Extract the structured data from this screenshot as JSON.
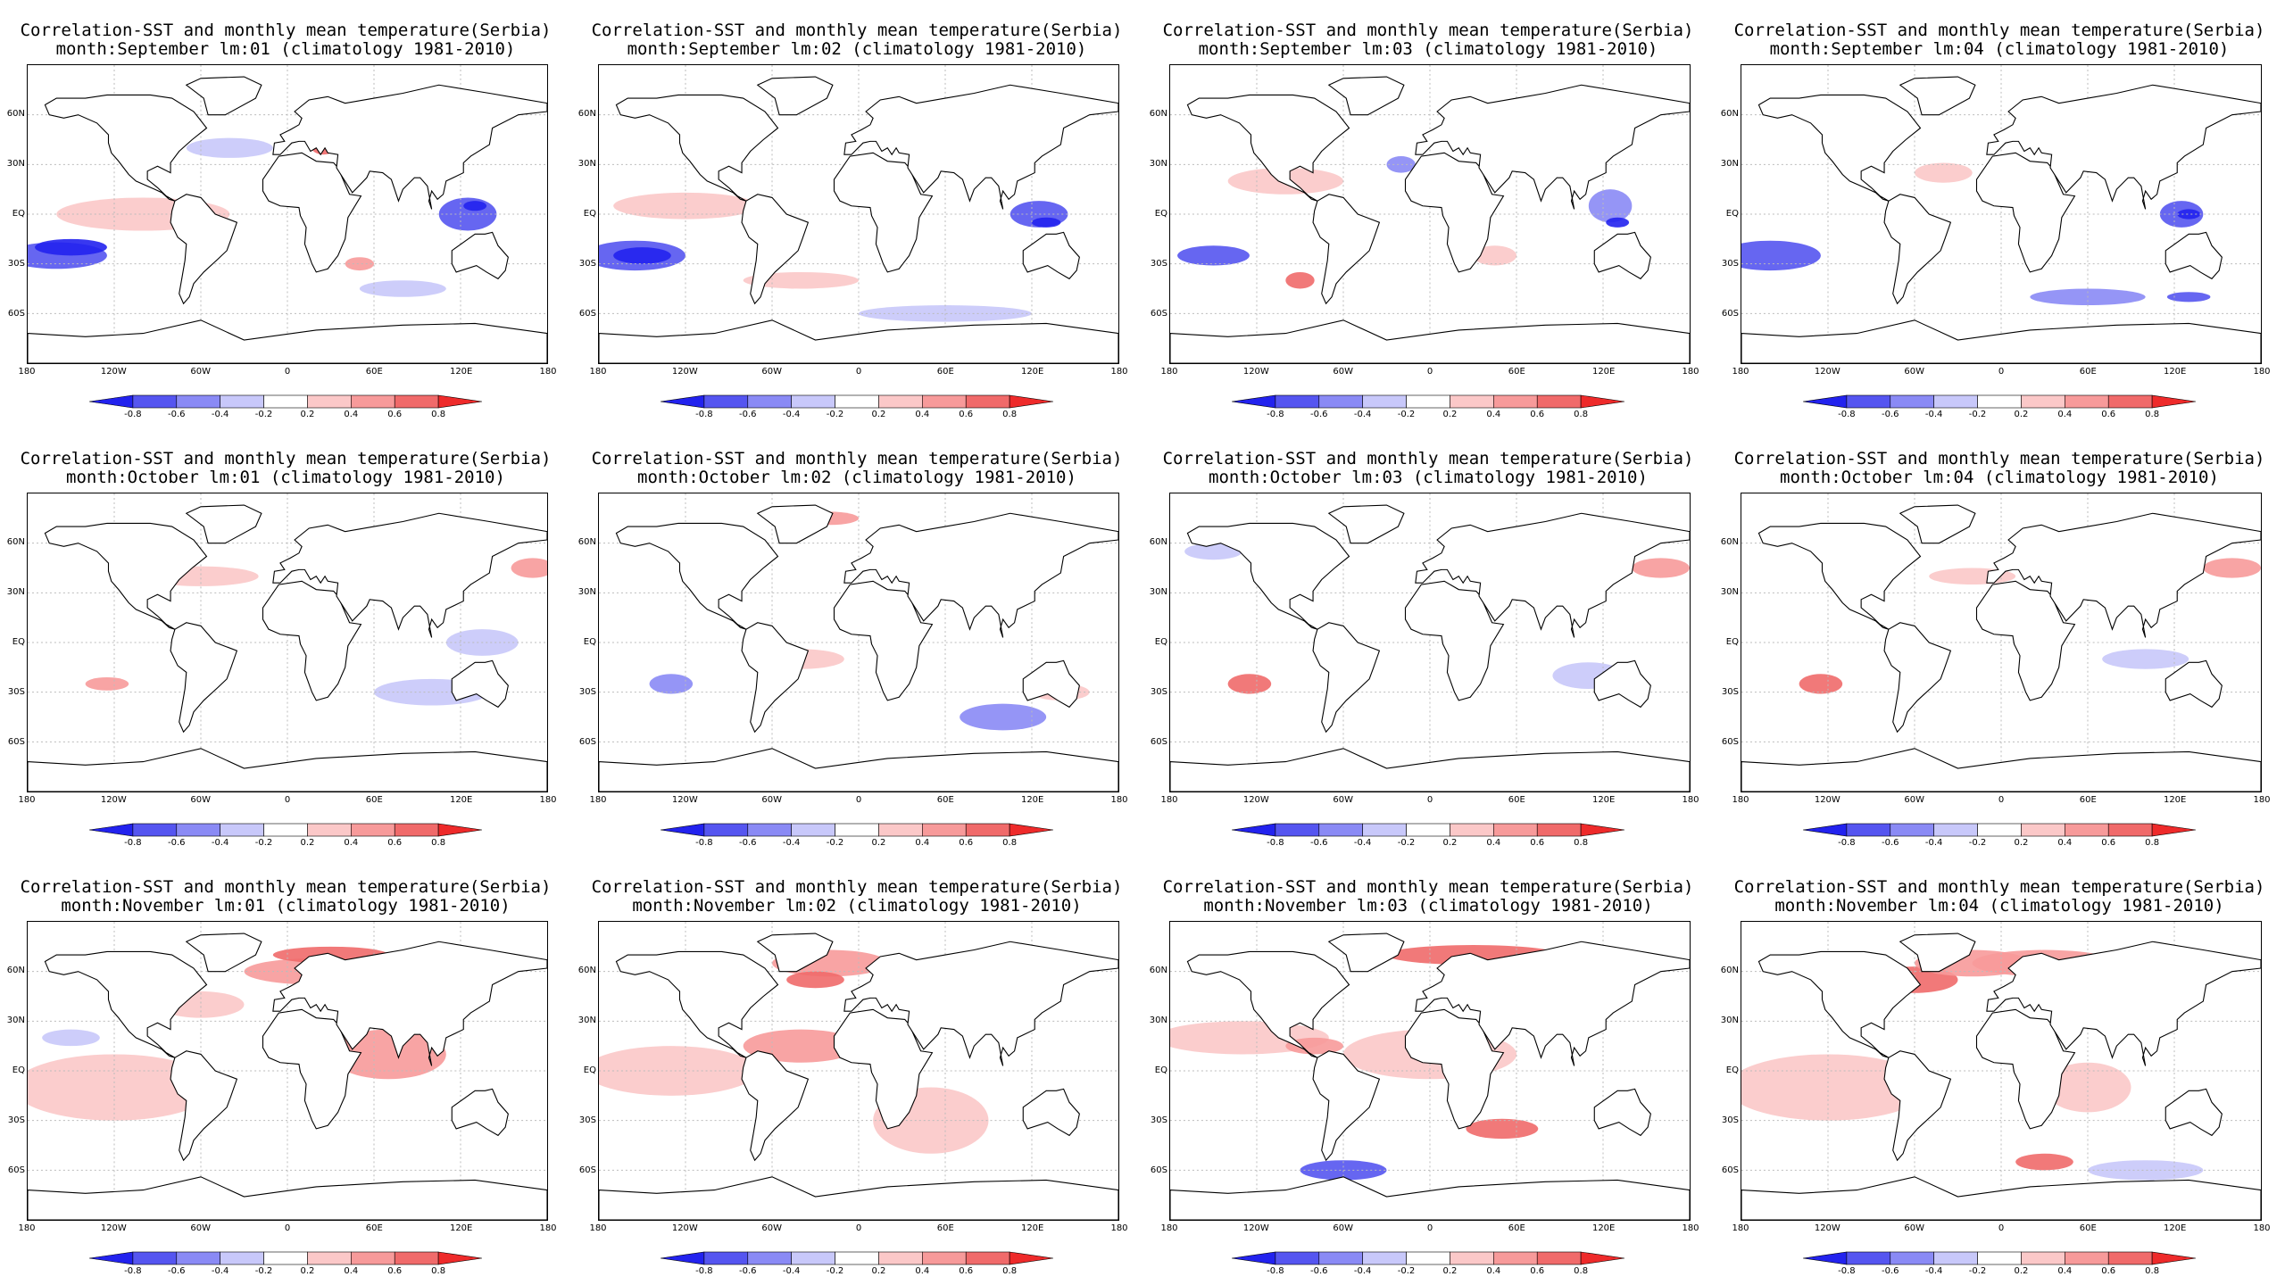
{
  "figure": {
    "title_line1": "Correlation-SST and monthly mean temperature(Serbia)",
    "colorbar_labels": [
      "-0.8",
      "-0.6",
      "-0.4",
      "-0.2",
      "0.2",
      "0.4",
      "0.6",
      "0.8"
    ],
    "colorbar_colors": [
      "#2222ee",
      "#5555f0",
      "#8a8af5",
      "#c8c8fa",
      "#ffffff",
      "#fbc8c8",
      "#f79a9a",
      "#f06a6a",
      "#ee2a2a"
    ],
    "lon_labels": [
      "180",
      "120W",
      "60W",
      "0",
      "60E",
      "120E",
      "180"
    ],
    "lat_labels": [
      "60N",
      "30N",
      "EQ",
      "30S",
      "60S"
    ],
    "panels": [
      {
        "subtitle": "month:September lm:01 (climatology 1981-2010)",
        "month": "September",
        "lead": "01"
      },
      {
        "subtitle": "month:September lm:02 (climatology 1981-2010)",
        "month": "September",
        "lead": "02"
      },
      {
        "subtitle": "month:September lm:03 (climatology 1981-2010)",
        "month": "September",
        "lead": "03"
      },
      {
        "subtitle": "month:September lm:04 (climatology 1981-2010)",
        "month": "September",
        "lead": "04"
      },
      {
        "subtitle": "month:October lm:01 (climatology 1981-2010)",
        "month": "October",
        "lead": "01"
      },
      {
        "subtitle": "month:October lm:02 (climatology 1981-2010)",
        "month": "October",
        "lead": "02"
      },
      {
        "subtitle": "month:October lm:03 (climatology 1981-2010)",
        "month": "October",
        "lead": "03"
      },
      {
        "subtitle": "month:October lm:04 (climatology 1981-2010)",
        "month": "October",
        "lead": "04"
      },
      {
        "subtitle": "month:November lm:01 (climatology 1981-2010)",
        "month": "November",
        "lead": "01"
      },
      {
        "subtitle": "month:November lm:02 (climatology 1981-2010)",
        "month": "November",
        "lead": "02"
      },
      {
        "subtitle": "month:November lm:03 (climatology 1981-2010)",
        "month": "November",
        "lead": "03"
      },
      {
        "subtitle": "month:November lm:04 (climatology 1981-2010)",
        "month": "November",
        "lead": "04"
      }
    ]
  }
}
